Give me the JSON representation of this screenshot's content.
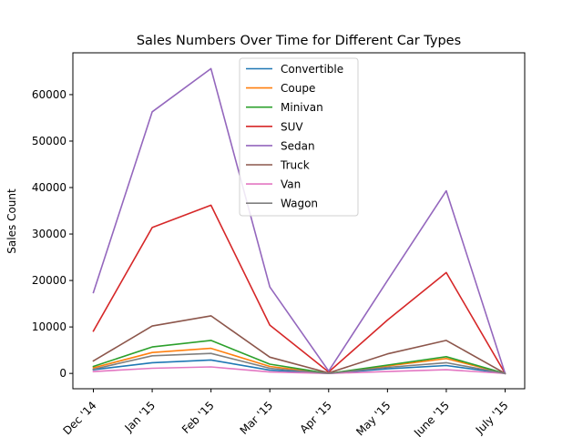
{
  "chart_data": {
    "type": "line",
    "title": "Sales Numbers Over Time for Different Car Types",
    "xlabel": "",
    "ylabel": "Sales Count",
    "categories": [
      "Dec '14",
      "Jan '15",
      "Feb '15",
      "Mar '15",
      "Apr '15",
      "May '15",
      "June '15",
      "July '15"
    ],
    "ylim": [
      -3300,
      69000
    ],
    "yticks": [
      0,
      10000,
      20000,
      30000,
      40000,
      50000,
      60000
    ],
    "grid": false,
    "legend_position": "top-center",
    "series": [
      {
        "name": "Convertible",
        "color": "#1f77b4",
        "values": [
          800,
          2300,
          2900,
          700,
          0,
          1000,
          1700,
          0
        ]
      },
      {
        "name": "Coupe",
        "color": "#ff7f0e",
        "values": [
          1200,
          4500,
          5400,
          1500,
          0,
          1600,
          3200,
          0
        ]
      },
      {
        "name": "Minivan",
        "color": "#2ca02c",
        "values": [
          1500,
          5700,
          7100,
          2000,
          0,
          1800,
          3600,
          0
        ]
      },
      {
        "name": "SUV",
        "color": "#d62728",
        "values": [
          9100,
          31400,
          36200,
          10400,
          300,
          11500,
          21700,
          0
        ]
      },
      {
        "name": "Sedan",
        "color": "#9467bd",
        "values": [
          17400,
          56300,
          65600,
          18600,
          500,
          20000,
          39300,
          0
        ]
      },
      {
        "name": "Truck",
        "color": "#8c564b",
        "values": [
          2700,
          10200,
          12400,
          3500,
          100,
          4200,
          7100,
          0
        ]
      },
      {
        "name": "Van",
        "color": "#e377c2",
        "values": [
          400,
          1100,
          1400,
          300,
          0,
          400,
          800,
          0
        ]
      },
      {
        "name": "Wagon",
        "color": "#7f7f7f",
        "values": [
          900,
          3800,
          4300,
          1100,
          0,
          1300,
          2300,
          0
        ]
      }
    ]
  }
}
